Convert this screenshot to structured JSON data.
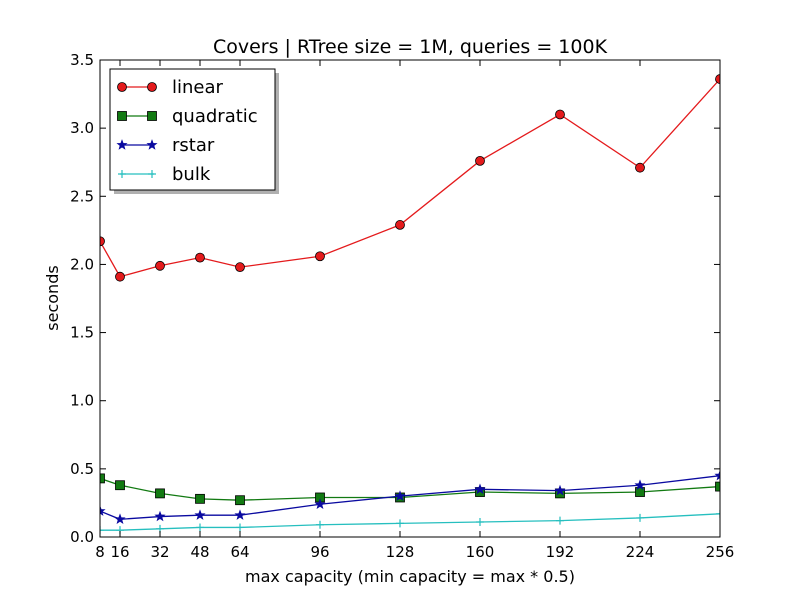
{
  "chart_data": {
    "type": "line",
    "title": "Covers | RTree size = 1M, queries = 100K",
    "xlabel": "max capacity (min capacity = max * 0.5)",
    "ylabel": "seconds",
    "xlim": [
      8,
      256
    ],
    "ylim": [
      0,
      3.5
    ],
    "x": [
      8,
      16,
      32,
      48,
      64,
      96,
      128,
      160,
      192,
      224,
      256
    ],
    "xticks": [
      "8",
      "16",
      "32",
      "48",
      "64",
      "96",
      "128",
      "160",
      "192",
      "224",
      "256"
    ],
    "yticks": [
      "0.0",
      "0.5",
      "1.0",
      "1.5",
      "2.0",
      "2.5",
      "3.0",
      "3.5"
    ],
    "grid": false,
    "legend_position": "top-left",
    "series": [
      {
        "name": "linear",
        "color": "#e41a1c",
        "marker": "circle",
        "values": [
          2.17,
          1.91,
          1.99,
          2.05,
          1.98,
          2.06,
          2.29,
          2.76,
          3.1,
          2.71,
          3.36
        ]
      },
      {
        "name": "quadratic",
        "color": "#127a12",
        "marker": "square",
        "values": [
          0.43,
          0.38,
          0.32,
          0.28,
          0.27,
          0.29,
          0.29,
          0.33,
          0.32,
          0.33,
          0.37
        ]
      },
      {
        "name": "rstar",
        "color": "#0a0aa0",
        "marker": "star",
        "values": [
          0.19,
          0.13,
          0.15,
          0.16,
          0.16,
          0.24,
          0.3,
          0.35,
          0.34,
          0.38,
          0.45
        ]
      },
      {
        "name": "bulk",
        "color": "#26bfbf",
        "marker": "plus",
        "values": [
          0.05,
          0.05,
          0.06,
          0.07,
          0.07,
          0.09,
          0.1,
          0.11,
          0.12,
          0.14,
          0.17
        ]
      }
    ]
  }
}
